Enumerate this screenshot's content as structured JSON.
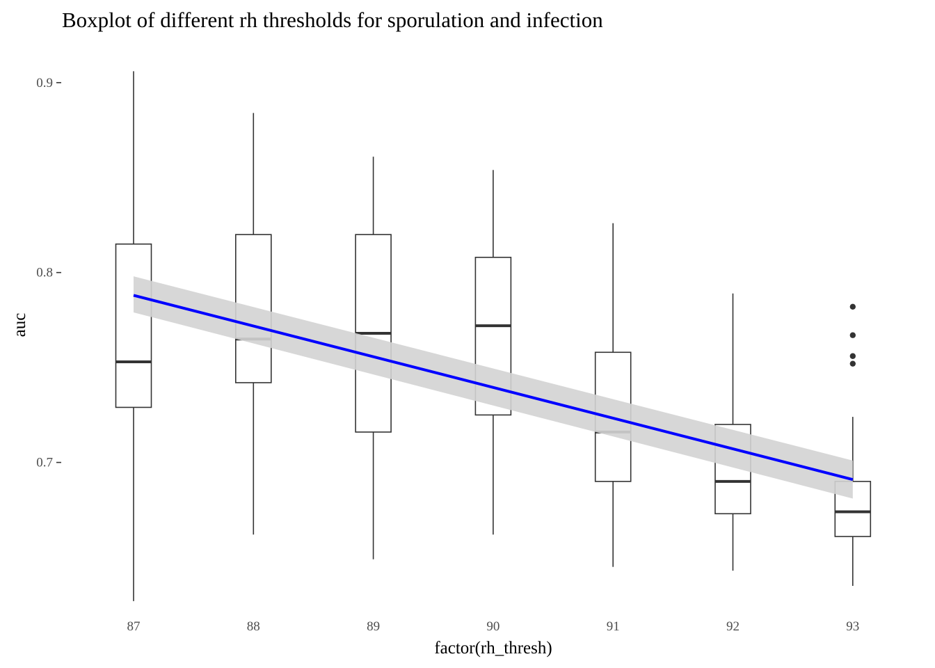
{
  "chart_data": {
    "type": "boxplot",
    "title": "Boxplot of different rh thresholds for sporulation and infection",
    "xlabel": "factor(rh_thresh)",
    "ylabel": "auc",
    "ylim": [
      0.624,
      0.912
    ],
    "yticks": [
      0.7,
      0.8,
      0.9
    ],
    "ytick_labels": [
      "0.7",
      "0.8",
      "0.9"
    ],
    "grid": false,
    "categories": [
      "87",
      "88",
      "89",
      "90",
      "91",
      "92",
      "93"
    ],
    "boxes": [
      {
        "category": "87",
        "whisker_low": 0.627,
        "q1": 0.729,
        "median": 0.753,
        "q3": 0.815,
        "whisker_high": 0.906,
        "outliers": []
      },
      {
        "category": "88",
        "whisker_low": 0.662,
        "q1": 0.742,
        "median": 0.765,
        "q3": 0.82,
        "whisker_high": 0.884,
        "outliers": []
      },
      {
        "category": "89",
        "whisker_low": 0.649,
        "q1": 0.716,
        "median": 0.768,
        "q3": 0.82,
        "whisker_high": 0.861,
        "outliers": []
      },
      {
        "category": "90",
        "whisker_low": 0.662,
        "q1": 0.725,
        "median": 0.772,
        "q3": 0.808,
        "whisker_high": 0.854,
        "outliers": []
      },
      {
        "category": "91",
        "whisker_low": 0.645,
        "q1": 0.69,
        "median": 0.716,
        "q3": 0.758,
        "whisker_high": 0.826,
        "outliers": []
      },
      {
        "category": "92",
        "whisker_low": 0.643,
        "q1": 0.673,
        "median": 0.69,
        "q3": 0.72,
        "whisker_high": 0.789,
        "outliers": []
      },
      {
        "category": "93",
        "whisker_low": 0.635,
        "q1": 0.661,
        "median": 0.674,
        "q3": 0.69,
        "whisker_high": 0.724,
        "outliers": [
          0.782,
          0.767,
          0.756,
          0.752
        ]
      }
    ],
    "trend_line": {
      "type": "linear",
      "start": {
        "category": "87",
        "value": 0.788
      },
      "end": {
        "category": "93",
        "value": 0.691
      },
      "ci_start": [
        0.779,
        0.798
      ],
      "ci_end": [
        0.681,
        0.701
      ],
      "color": "#0000ff",
      "ci_color": "#d3d3d3"
    },
    "box_color": "#333333",
    "axis_color": "#333333"
  }
}
